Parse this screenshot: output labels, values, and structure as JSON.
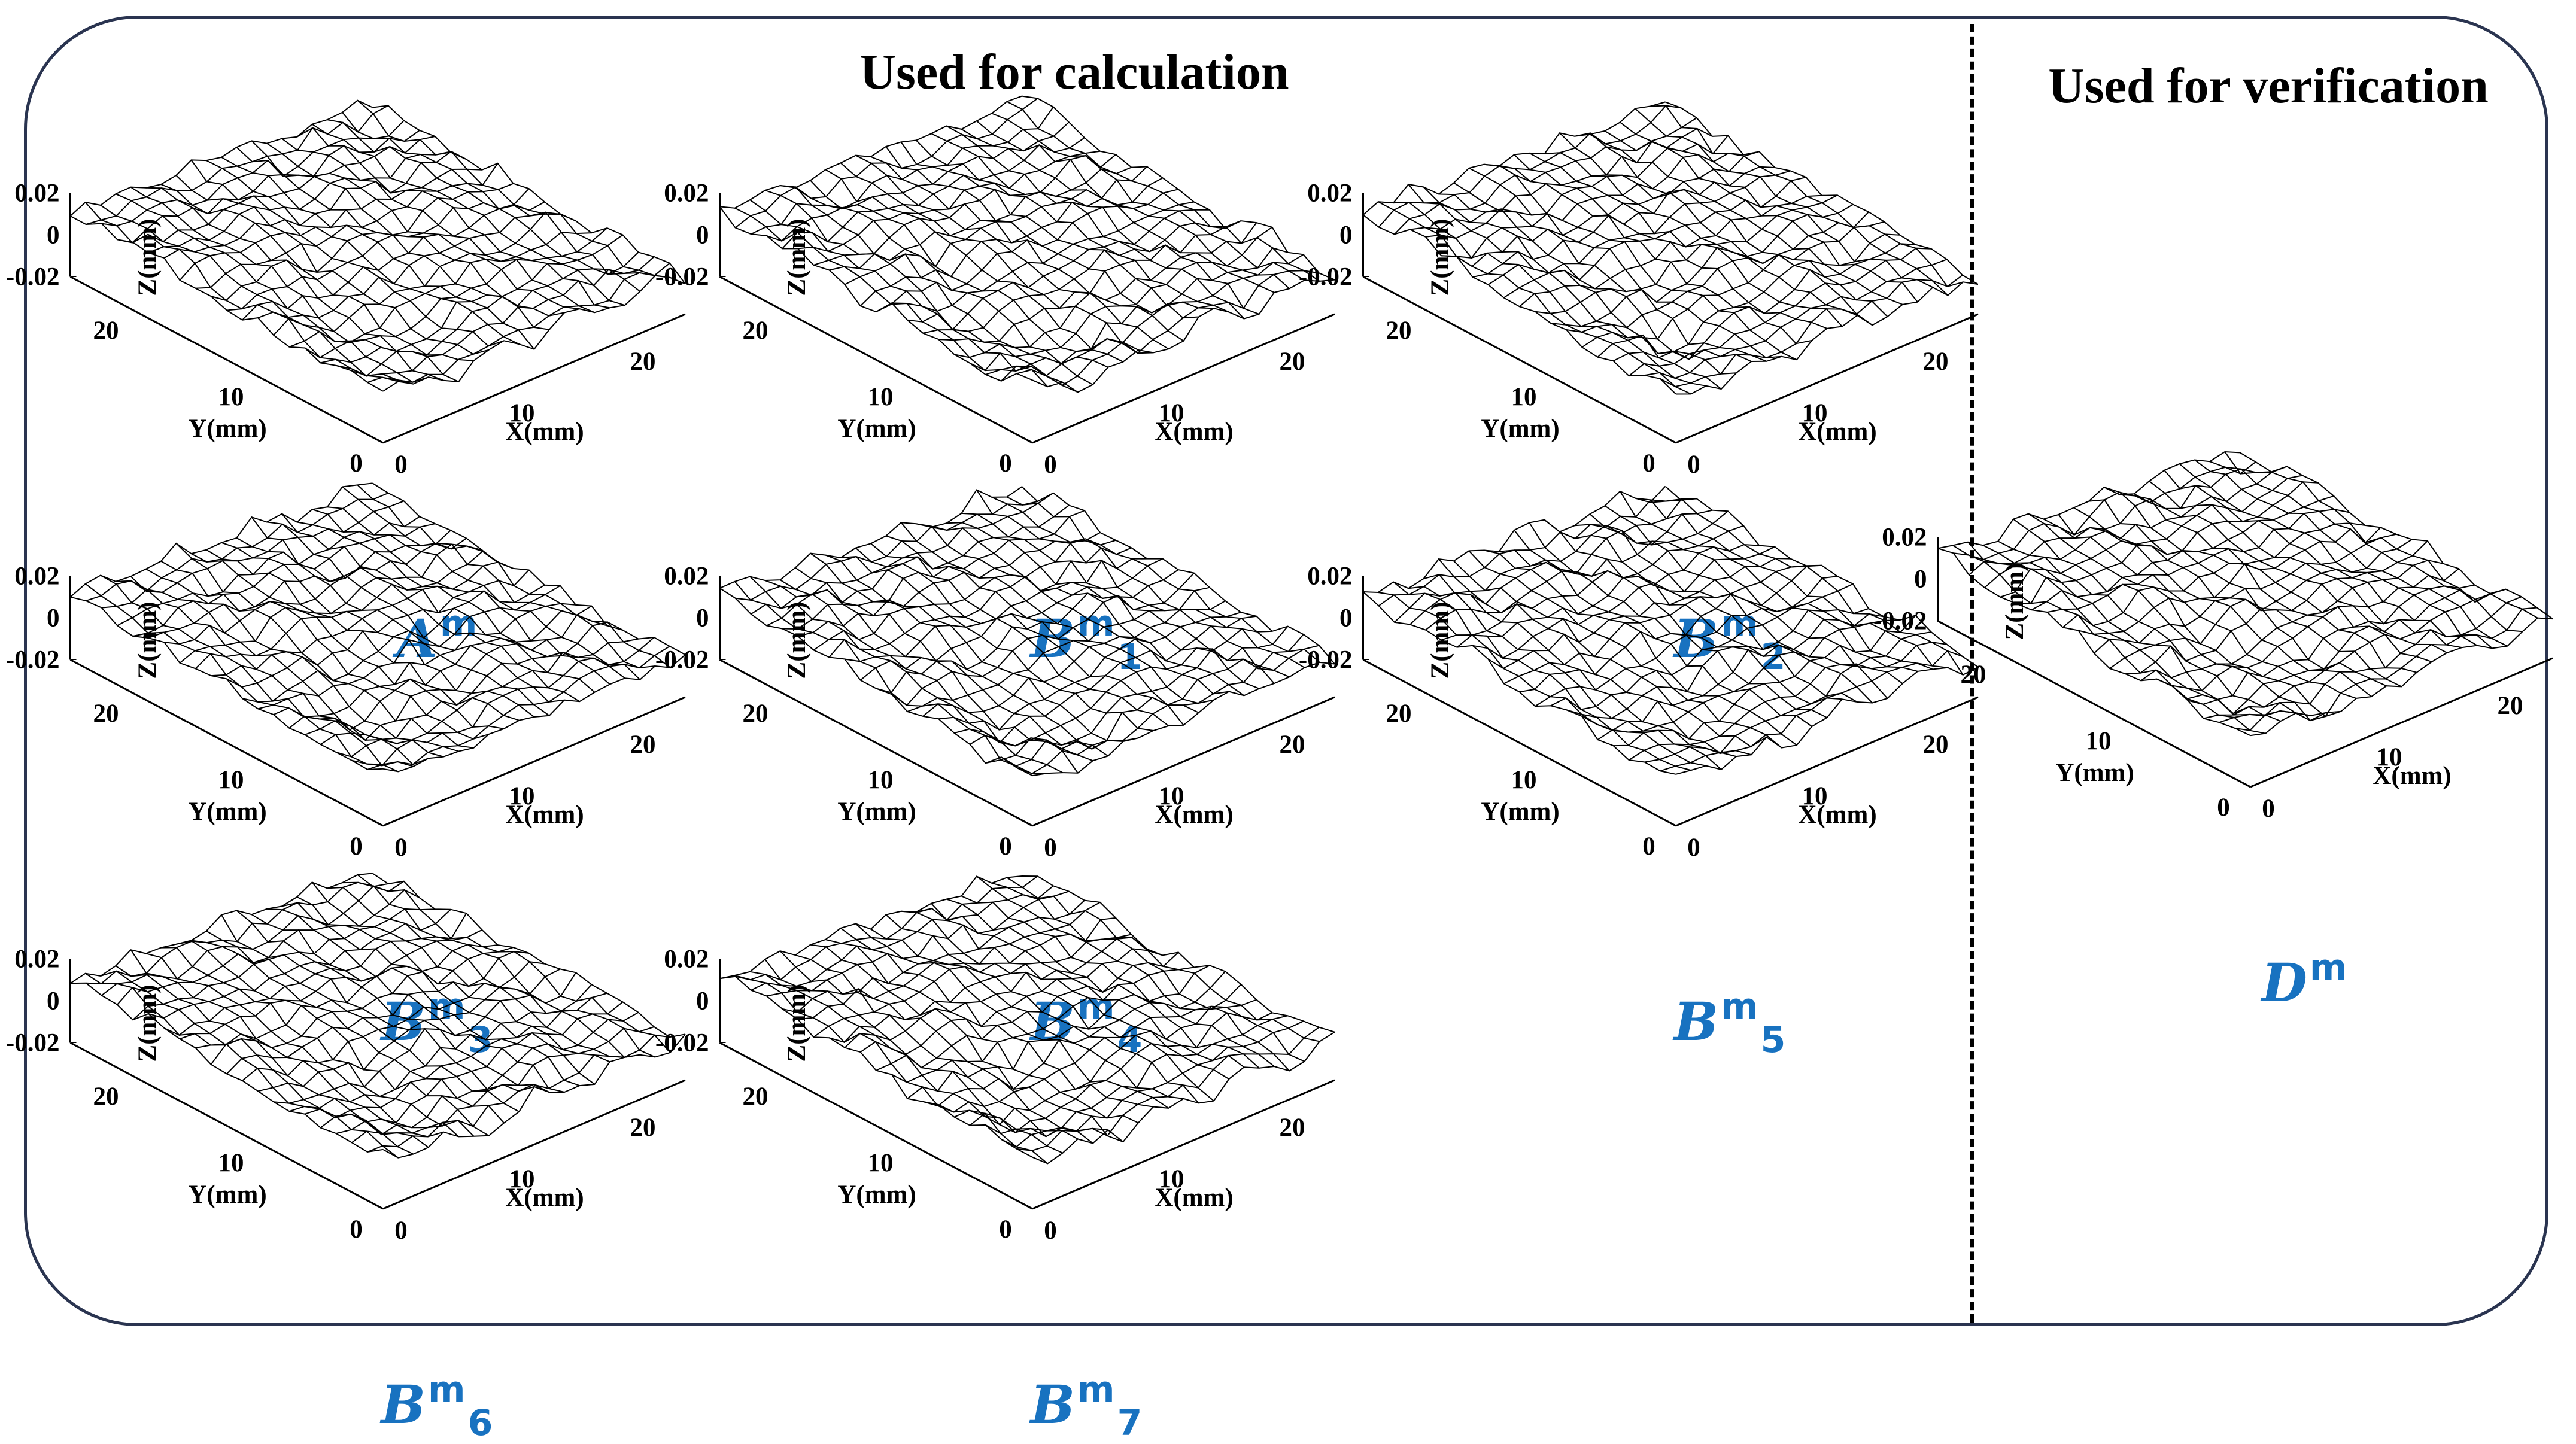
{
  "headings": {
    "calculation": "Used for calculation",
    "verification": "Used for verification"
  },
  "axis": {
    "z_label": "Z(mm)",
    "y_label": "Y(mm)",
    "x_label": "X(mm)",
    "z_ticks": [
      "0.02",
      "0",
      "-0.02"
    ],
    "y_ticks": [
      "20",
      "10",
      "0"
    ],
    "x_ticks": [
      "0",
      "10",
      "20"
    ]
  },
  "colors": {
    "label": "#1872c0",
    "frame": "#2a3450",
    "mesh": "#000000"
  },
  "plots": [
    {
      "id": "A",
      "letter": "A",
      "sup": "m",
      "sub": ""
    },
    {
      "id": "B1",
      "letter": "B",
      "sup": "m",
      "sub": "1"
    },
    {
      "id": "B2",
      "letter": "B",
      "sup": "m",
      "sub": "2"
    },
    {
      "id": "B3",
      "letter": "B",
      "sup": "m",
      "sub": "3"
    },
    {
      "id": "B4",
      "letter": "B",
      "sup": "m",
      "sub": "4"
    },
    {
      "id": "B5",
      "letter": "B",
      "sup": "m",
      "sub": "5"
    },
    {
      "id": "B6",
      "letter": "B",
      "sup": "m",
      "sub": "6"
    },
    {
      "id": "B7",
      "letter": "B",
      "sup": "m",
      "sub": "7"
    },
    {
      "id": "D",
      "letter": "D",
      "sup": "m",
      "sub": ""
    }
  ]
}
